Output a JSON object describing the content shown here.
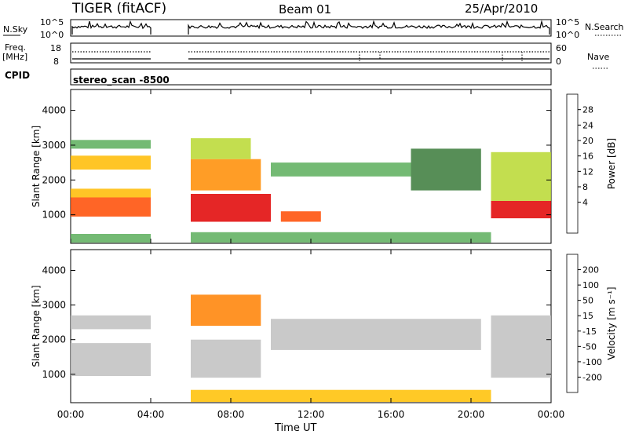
{
  "header": {
    "title": "TIGER (fitACF)",
    "beam": "Beam 01",
    "date": "25/Apr/2010",
    "nsky_label": "N.Sky",
    "nsky_ticks": [
      "10^5",
      "10^0"
    ],
    "nsearch_label": "N.Search",
    "nsearch_ticks": [
      "10^5",
      "10^0"
    ],
    "freq_label_1": "Freq.",
    "freq_label_2": "[MHz]",
    "freq_ticks": [
      "18",
      "8"
    ],
    "nave_label": "Nave",
    "nave_ticks": [
      "60",
      "0"
    ],
    "cpid_label": "CPID",
    "cpid_value": "stereo_scan -8500"
  },
  "chart_data": [
    {
      "type": "heatmap",
      "name": "power-panel",
      "xlabel": "",
      "ylabel": "Slant Range [km]",
      "xlim": [
        0,
        24
      ],
      "ylim": [
        180,
        4600
      ],
      "yticks": [
        1000,
        2000,
        3000,
        4000
      ],
      "xtick_labels": [
        "00:00",
        "04:00",
        "08:00",
        "12:00",
        "16:00",
        "20:00",
        "00:00"
      ],
      "colorbar": {
        "label": "Power [dB]",
        "ticks": [
          "28",
          "24",
          "20",
          "16",
          "12",
          "8",
          "4"
        ],
        "colors": [
          "#e00000",
          "#ff4a00",
          "#ff8c00",
          "#ffbb00",
          "#b8d830",
          "#5cae5c",
          "#3a7a3a",
          "#1f3f9f",
          "#0000d8"
        ]
      },
      "data_gap": [
        "04:00",
        "06:00"
      ],
      "regions": [
        {
          "t": [
            0.0,
            4.0
          ],
          "r": [
            950,
            1500
          ],
          "value": 27
        },
        {
          "t": [
            0.0,
            4.0
          ],
          "r": [
            1500,
            1750
          ],
          "value": 16
        },
        {
          "t": [
            0.0,
            4.0
          ],
          "r": [
            2300,
            2700
          ],
          "value": 18
        },
        {
          "t": [
            0.0,
            4.0
          ],
          "r": [
            2900,
            3150
          ],
          "value": 10
        },
        {
          "t": [
            0.0,
            4.0
          ],
          "r": [
            200,
            450
          ],
          "value": 10
        },
        {
          "t": [
            6.0,
            10.0
          ],
          "r": [
            800,
            1600
          ],
          "value": 28
        },
        {
          "t": [
            6.0,
            9.5
          ],
          "r": [
            1700,
            2600
          ],
          "value": 20
        },
        {
          "t": [
            6.0,
            9.0
          ],
          "r": [
            2600,
            3200
          ],
          "value": 14
        },
        {
          "t": [
            10.0,
            17.0
          ],
          "r": [
            2100,
            2500
          ],
          "value": 8
        },
        {
          "t": [
            10.5,
            12.5
          ],
          "r": [
            800,
            1100
          ],
          "value": 26
        },
        {
          "t": [
            17.0,
            20.5
          ],
          "r": [
            1700,
            2900
          ],
          "value": 6
        },
        {
          "t": [
            21.0,
            24.0
          ],
          "r": [
            900,
            1400
          ],
          "value": 28
        },
        {
          "t": [
            21.0,
            24.0
          ],
          "r": [
            1400,
            2800
          ],
          "value": 14
        },
        {
          "t": [
            6.0,
            21.0
          ],
          "r": [
            200,
            500
          ],
          "value": 9
        }
      ]
    },
    {
      "type": "heatmap",
      "name": "velocity-panel",
      "xlabel": "Time UT",
      "ylabel": "Slant Range [km]",
      "xlim": [
        0,
        24
      ],
      "ylim": [
        180,
        4600
      ],
      "yticks": [
        1000,
        2000,
        3000,
        4000
      ],
      "xtick_labels": [
        "00:00",
        "04:00",
        "08:00",
        "12:00",
        "16:00",
        "20:00",
        "00:00"
      ],
      "colorbar": {
        "label": "Velocity [m s⁻¹]",
        "ticks": [
          "200",
          "100",
          "50",
          "15",
          "-15",
          "-50",
          "-100",
          "-200"
        ],
        "colors": [
          "#1a3ac8",
          "#3a6ad8",
          "#1e8a2a",
          "#60c040",
          "#c0c0c0",
          "#ffc000",
          "#ff8000",
          "#ff4000",
          "#e00000"
        ]
      },
      "data_gap": [
        "04:00",
        "06:00"
      ],
      "regions": [
        {
          "t": [
            0.0,
            4.0
          ],
          "r": [
            950,
            1900
          ],
          "value": 0
        },
        {
          "t": [
            0.0,
            4.0
          ],
          "r": [
            2300,
            2700
          ],
          "value": 0
        },
        {
          "t": [
            6.0,
            9.5
          ],
          "r": [
            900,
            2000
          ],
          "value": 0
        },
        {
          "t": [
            6.0,
            9.5
          ],
          "r": [
            2400,
            3300
          ],
          "value": -80
        },
        {
          "t": [
            10.0,
            20.5
          ],
          "r": [
            1700,
            2600
          ],
          "value": 0
        },
        {
          "t": [
            21.0,
            24.0
          ],
          "r": [
            900,
            2700
          ],
          "value": 0
        },
        {
          "t": [
            6.0,
            21.0
          ],
          "r": [
            200,
            550
          ],
          "value": -40
        }
      ]
    }
  ]
}
